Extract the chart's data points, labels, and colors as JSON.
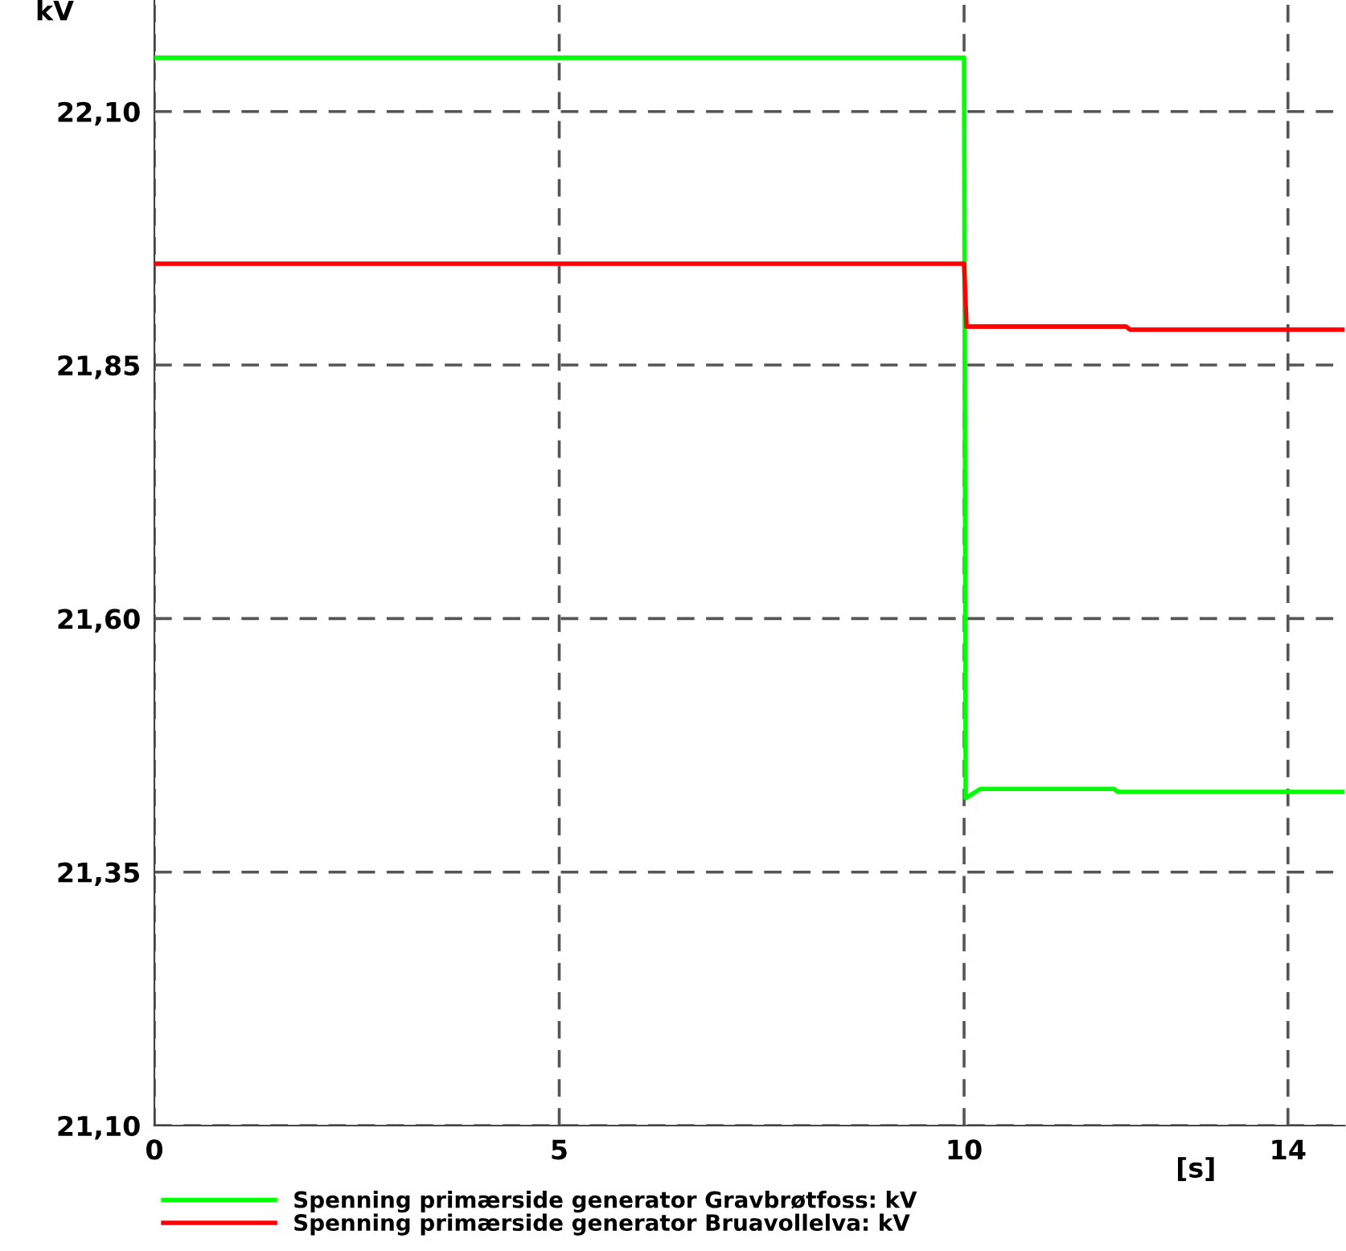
{
  "chart_data": {
    "type": "line",
    "ylabel": "kV",
    "xlabel": "[s]",
    "xlim": [
      0,
      14.7
    ],
    "ylim": [
      21.1,
      22.21
    ],
    "xticks": [
      0,
      5,
      10,
      14
    ],
    "yticks": [
      {
        "value": 21.1,
        "label": "21,10"
      },
      {
        "value": 21.35,
        "label": "21,35"
      },
      {
        "value": 21.6,
        "label": "21,60"
      },
      {
        "value": 21.85,
        "label": "21,85"
      },
      {
        "value": 22.1,
        "label": "22,10"
      }
    ],
    "grid": true,
    "legend": "bottom",
    "marker": "none",
    "line_style": "solid",
    "series": [
      {
        "name": "Spenning primærside generator Gravbrøtfoss: kV",
        "color": "#00ff00",
        "x": [
          0,
          10,
          10.02,
          10.2,
          11.85,
          11.9,
          14.7
        ],
        "values": [
          22.153,
          22.153,
          21.423,
          21.432,
          21.432,
          21.429,
          21.429
        ]
      },
      {
        "name": "Spenning primærside generator Bruavollelva: kV",
        "color": "#ff0000",
        "x": [
          0,
          10,
          10.03,
          12.0,
          12.05,
          14.7
        ],
        "values": [
          21.95,
          21.95,
          21.888,
          21.888,
          21.885,
          21.885
        ]
      }
    ]
  }
}
